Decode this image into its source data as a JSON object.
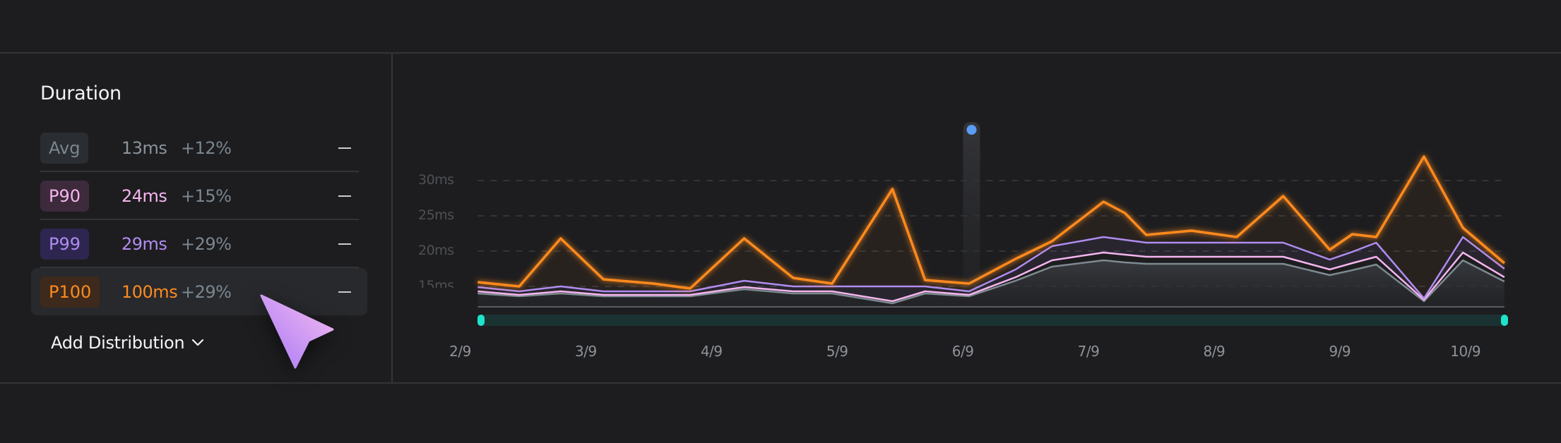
{
  "panel": {
    "title": "Duration",
    "rows": [
      {
        "label": "Avg",
        "value": "13ms",
        "change": "+12%",
        "remove": "—",
        "color": "#7d8a90",
        "badge_bg": "#2a2d31"
      },
      {
        "label": "P90",
        "value": "24ms",
        "change": "+15%",
        "remove": "—",
        "color": "#f5b5ee",
        "badge_bg": "#3d2a3b"
      },
      {
        "label": "P99",
        "value": "29ms",
        "change": "+29%",
        "remove": "—",
        "color": "#b08cf0",
        "badge_bg": "#2e2650"
      },
      {
        "label": "P100",
        "value": "100ms",
        "change": "+29%",
        "remove": "—",
        "color": "#ff8a1f",
        "badge_bg": "#3d2a1c"
      }
    ],
    "add_label": "Add Distribution"
  },
  "chart_data": {
    "type": "line",
    "title": "Duration",
    "xlabel": "",
    "ylabel": "",
    "x_tick_labels": [
      "2/9",
      "3/9",
      "4/9",
      "5/9",
      "6/9",
      "7/9",
      "8/9",
      "9/9",
      "10/9"
    ],
    "y_tick_labels": [
      "15ms",
      "20ms",
      "25ms",
      "30ms"
    ],
    "y_ticks": [
      15,
      20,
      25,
      30
    ],
    "ylim": [
      12.1,
      35
    ],
    "xlim": [
      0.14,
      8.31
    ],
    "grid": true,
    "x": [
      0.14,
      0.47,
      0.8,
      1.14,
      1.54,
      1.83,
      2.26,
      2.65,
      2.96,
      3.44,
      3.7,
      4.05,
      4.42,
      4.71,
      5.12,
      5.29,
      5.46,
      5.82,
      6.18,
      6.55,
      6.92,
      7.1,
      7.29,
      7.67,
      7.98,
      8.31
    ],
    "series": [
      {
        "name": "Avg",
        "color": "#7d8a90",
        "values": [
          14.0,
          13.6,
          14.0,
          13.6,
          13.6,
          13.6,
          14.6,
          14.0,
          14.0,
          12.6,
          14.0,
          13.6,
          15.8,
          17.8,
          18.7,
          18.4,
          18.2,
          18.2,
          18.2,
          18.2,
          16.6,
          17.3,
          18.1,
          12.9,
          18.7,
          15.7
        ]
      },
      {
        "name": "P90",
        "color": "#f5b5ee",
        "values": [
          14.3,
          13.8,
          14.3,
          13.8,
          13.8,
          13.8,
          14.9,
          14.3,
          14.3,
          12.9,
          14.3,
          13.8,
          16.3,
          18.7,
          19.8,
          19.5,
          19.2,
          19.2,
          19.2,
          19.2,
          17.4,
          18.3,
          19.2,
          13.1,
          19.8,
          16.3
        ]
      },
      {
        "name": "P99",
        "color": "#b08cf0",
        "values": [
          14.9,
          14.3,
          15.0,
          14.3,
          14.3,
          14.3,
          15.8,
          15.0,
          15.0,
          15.0,
          15.0,
          14.3,
          17.4,
          20.7,
          22.0,
          21.6,
          21.2,
          21.2,
          21.2,
          21.2,
          18.8,
          19.9,
          21.2,
          13.3,
          22.0,
          17.5
        ]
      },
      {
        "name": "P100",
        "color": "#ff8a1f",
        "values": [
          15.6,
          15.0,
          21.8,
          16.0,
          15.4,
          14.7,
          21.8,
          16.2,
          15.4,
          28.8,
          15.9,
          15.4,
          18.9,
          21.4,
          27.0,
          25.4,
          22.3,
          22.9,
          22.0,
          27.8,
          20.2,
          22.4,
          22.0,
          33.4,
          23.3,
          18.3
        ]
      }
    ],
    "hover_x": 4.07,
    "hover_color": "#5b9cf5",
    "range_selector": {
      "start": 0,
      "end": 1,
      "color": "#1de4cb"
    }
  }
}
